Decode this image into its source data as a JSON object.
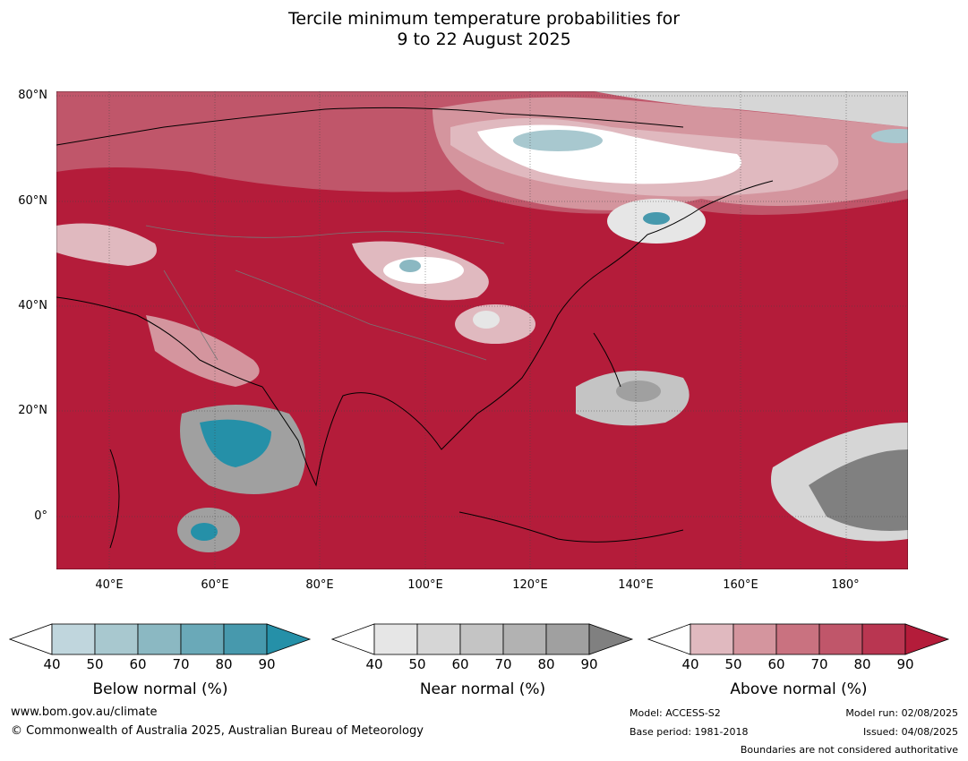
{
  "title_line1": "Tercile minimum temperature probabilities for",
  "title_line2": "9 to 22 August 2025",
  "lat_labels": [
    "80°N",
    "60°N",
    "40°N",
    "20°N",
    "0°"
  ],
  "lon_labels": [
    "40°E",
    "60°E",
    "80°E",
    "100°E",
    "120°E",
    "140°E",
    "160°E",
    "180°"
  ],
  "colorbars": [
    {
      "title": "Below normal (%)",
      "ticks": [
        "40",
        "50",
        "60",
        "70",
        "80",
        "90"
      ],
      "colors": [
        "#ffffff",
        "#c0d6dd",
        "#a8c8cf",
        "#8bb8c2",
        "#6aa9b8",
        "#4799ad",
        "#2590a8"
      ]
    },
    {
      "title": "Near normal (%)",
      "ticks": [
        "40",
        "50",
        "60",
        "70",
        "80",
        "90"
      ],
      "colors": [
        "#ffffff",
        "#e6e6e6",
        "#d6d6d6",
        "#c4c4c4",
        "#b2b2b2",
        "#a0a0a0",
        "#808080"
      ]
    },
    {
      "title": "Above normal (%)",
      "ticks": [
        "40",
        "50",
        "60",
        "70",
        "80",
        "90"
      ],
      "colors": [
        "#ffffff",
        "#e0b9bf",
        "#d4959e",
        "#c97280",
        "#c0566a",
        "#b93651",
        "#b41c3a"
      ]
    }
  ],
  "footer": {
    "website": "www.bom.gov.au/climate",
    "copyright": "© Commonwealth of Australia 2025, Australian Bureau of Meteorology",
    "model": "Model: ACCESS-S2",
    "base_period": "Base period: 1981-2018",
    "model_run": "Model run: 02/08/2025",
    "issued": "Issued: 04/08/2025",
    "boundaries": "Boundaries are not considered authoritative"
  }
}
